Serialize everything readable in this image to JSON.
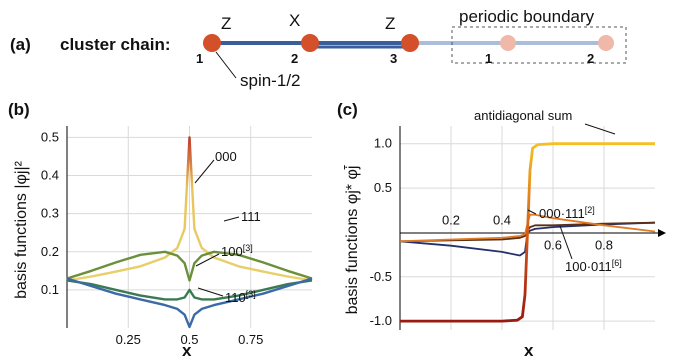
{
  "panel_a": {
    "label": "(a)",
    "title": "cluster chain:",
    "boundary_label": "periodic boundary",
    "spin_label": "spin-1/2",
    "site_ops": [
      "Z",
      "X",
      "Z"
    ],
    "site_numbers": [
      "1",
      "2",
      "3"
    ],
    "ghost_numbers": [
      "1",
      "2"
    ],
    "colors": {
      "site": "#d4502a",
      "ghost": "#f0b8a8",
      "bond_dark": "#3a5e9c",
      "bond_light": "#a9bedb"
    }
  },
  "chart_data": [
    {
      "type": "line",
      "panel_label": "(b)",
      "xlabel": "x",
      "ylabel": "basis functions |φj|²",
      "xlim": [
        0,
        1
      ],
      "ylim": [
        0,
        0.53
      ],
      "xticks": [
        "0.25",
        "0.5",
        "0.75"
      ],
      "yticks": [
        "0.1",
        "0.2",
        "0.3",
        "0.4",
        "0.5"
      ],
      "grid": true,
      "series": [
        {
          "name": "000",
          "color_low": "#e8d06a",
          "color_high": "#c0392b",
          "x": [
            0,
            0.1,
            0.2,
            0.3,
            0.4,
            0.45,
            0.48,
            0.5,
            0.52,
            0.55,
            0.6,
            0.7,
            0.8,
            0.9,
            1
          ],
          "y": [
            0.125,
            0.135,
            0.148,
            0.162,
            0.185,
            0.21,
            0.26,
            0.5,
            0.26,
            0.21,
            0.185,
            0.162,
            0.148,
            0.135,
            0.125
          ]
        },
        {
          "name": "111",
          "color": "#6b8f3a",
          "x": [
            0,
            0.1,
            0.2,
            0.3,
            0.4,
            0.45,
            0.48,
            0.5,
            0.52,
            0.55,
            0.6,
            0.7,
            0.8,
            0.9,
            1
          ],
          "y": [
            0.13,
            0.15,
            0.172,
            0.192,
            0.2,
            0.19,
            0.17,
            0.125,
            0.17,
            0.19,
            0.2,
            0.192,
            0.172,
            0.15,
            0.13
          ]
        },
        {
          "name": "100",
          "sup": "[3]",
          "color": "#3a7a52",
          "x": [
            0,
            0.1,
            0.2,
            0.3,
            0.4,
            0.45,
            0.48,
            0.5,
            0.52,
            0.55,
            0.6,
            0.7,
            0.8,
            0.9,
            1
          ],
          "y": [
            0.125,
            0.115,
            0.1,
            0.085,
            0.075,
            0.075,
            0.08,
            0.1,
            0.08,
            0.075,
            0.075,
            0.085,
            0.1,
            0.115,
            0.125
          ]
        },
        {
          "name": "110",
          "sup": "[3]",
          "color": "#3c6aa6",
          "x": [
            0,
            0.1,
            0.2,
            0.3,
            0.4,
            0.45,
            0.48,
            0.5,
            0.52,
            0.55,
            0.6,
            0.7,
            0.8,
            0.9,
            1
          ],
          "y": [
            0.13,
            0.11,
            0.09,
            0.075,
            0.06,
            0.05,
            0.035,
            0.003,
            0.035,
            0.05,
            0.06,
            0.075,
            0.09,
            0.11,
            0.13
          ]
        }
      ]
    },
    {
      "type": "line",
      "panel_label": "(c)",
      "xlabel": "x",
      "ylabel": "basis functions φj* φj̄",
      "xlim": [
        0,
        1
      ],
      "ylim": [
        -1.1,
        1.2
      ],
      "xticks": [
        "0.2",
        "0.4",
        "0.6",
        "0.8"
      ],
      "yticks": [
        "-1.0",
        "-0.5",
        "0.5",
        "1.0"
      ],
      "grid": true,
      "series": [
        {
          "name": "antidiagonal sum",
          "color_low": "#9a1a10",
          "color_high": "#f5c024",
          "x": [
            0,
            0.2,
            0.4,
            0.46,
            0.48,
            0.49,
            0.5,
            0.51,
            0.52,
            0.54,
            0.6,
            0.8,
            1
          ],
          "y": [
            -1,
            -1,
            -1,
            -0.99,
            -0.95,
            -0.7,
            0,
            0.7,
            0.95,
            0.99,
            1,
            1,
            1
          ]
        },
        {
          "name": "000·111",
          "sup": "[2]",
          "color": "#e07b25",
          "x": [
            0,
            0.2,
            0.4,
            0.47,
            0.49,
            0.5,
            0.51,
            0.53,
            0.6,
            0.8,
            1
          ],
          "y": [
            -0.1,
            -0.08,
            -0.06,
            -0.04,
            -0.02,
            0.1,
            0.2,
            0.2,
            0.16,
            0.08,
            0.01
          ]
        },
        {
          "name": "100·011",
          "sup": "[6]",
          "color": "#5a3018",
          "x": [
            0,
            0.2,
            0.4,
            0.47,
            0.49,
            0.5,
            0.51,
            0.53,
            0.6,
            0.8,
            1
          ],
          "y": [
            -0.1,
            -0.09,
            -0.08,
            -0.06,
            -0.04,
            0.02,
            0.06,
            0.08,
            0.08,
            0.1,
            0.11
          ]
        },
        {
          "name": "dark",
          "color": "#25306b",
          "x": [
            0,
            0.2,
            0.4,
            0.47,
            0.49,
            0.5,
            0.51,
            0.53,
            0.6,
            0.8,
            1
          ],
          "y": [
            -0.1,
            -0.15,
            -0.22,
            -0.26,
            -0.22,
            0,
            0.02,
            0.04,
            0.06,
            0.09,
            0.11
          ]
        }
      ]
    }
  ]
}
